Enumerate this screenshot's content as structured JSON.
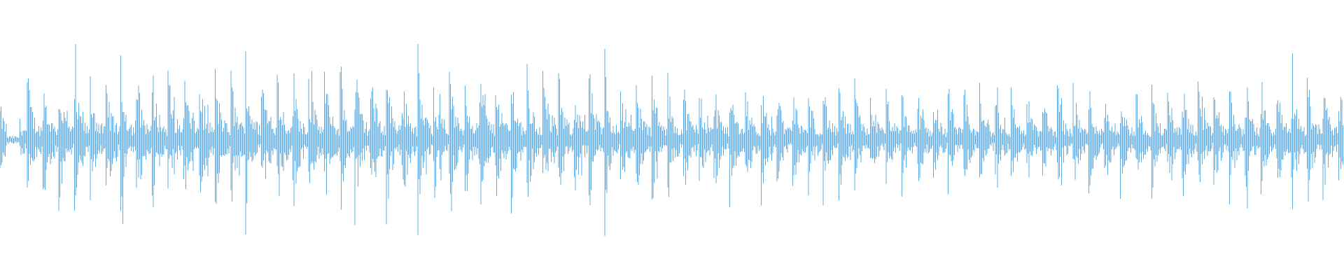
{
  "chart_data": {
    "type": "waveform",
    "color": "#5dade2",
    "background": "#ffffff",
    "ylim": [
      -1,
      1
    ],
    "grid": false,
    "axes_visible": false
  }
}
